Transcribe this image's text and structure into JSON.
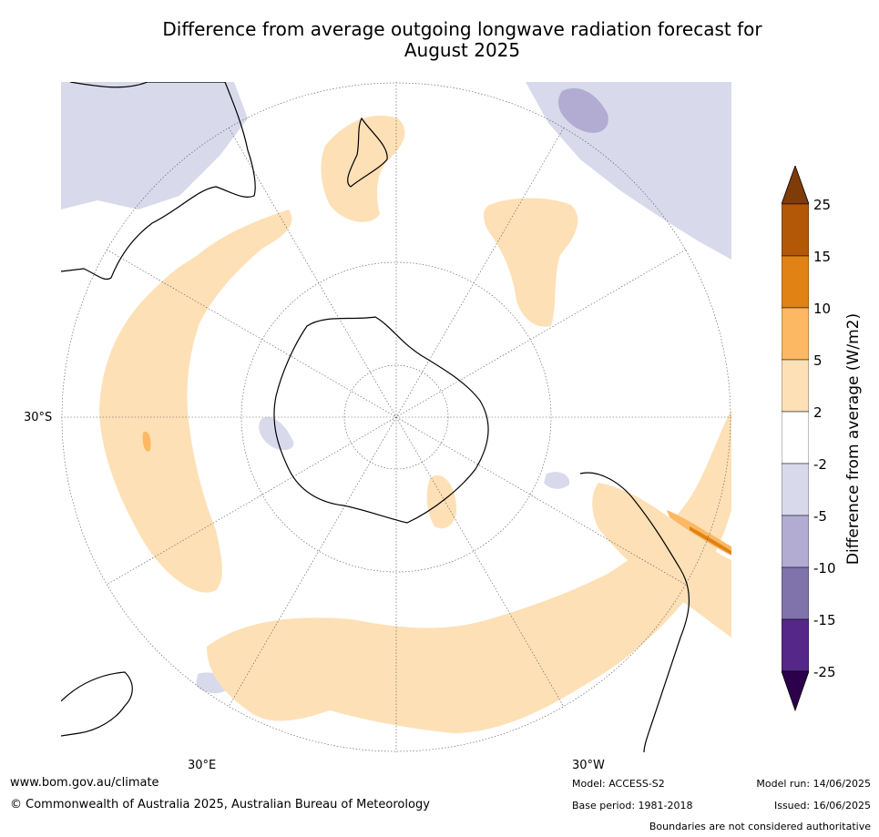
{
  "title": "Difference from average outgoing longwave radiation forecast for August 2025",
  "map": {
    "projection": "south-polar stereographic",
    "latitude_label": "30°S",
    "longitude_labels": [
      "30°E",
      "30°W"
    ]
  },
  "colorbar": {
    "label": "Difference from average (W/m2)",
    "ticks": [
      "25",
      "15",
      "10",
      "5",
      "2",
      "-2",
      "-5",
      "-10",
      "-15",
      "-25"
    ],
    "colors": {
      "above_25": "#7f3b08",
      "15_to_25": "#b35806",
      "10_to_15": "#e08214",
      "5_to_10": "#fdb863",
      "2_to_5": "#fee0b6",
      "-2_to_2": "#ffffff",
      "-5_to_-2": "#d8daeb",
      "-10_to_-5": "#b2abd2",
      "-15_to_-10": "#8073ac",
      "-25_to_-15": "#542788",
      "below_-25": "#2d004b"
    }
  },
  "footer": {
    "url": "www.bom.gov.au/climate",
    "copyright": "© Commonwealth of Australia 2025, Australian Bureau of Meteorology",
    "model": "Model: ACCESS-S2",
    "base_period": "Base period: 1981-2018",
    "model_run": "Model run: 14/06/2025",
    "issued": "Issued: 16/06/2025",
    "disclaimer": "Boundaries are not considered authoritative"
  }
}
